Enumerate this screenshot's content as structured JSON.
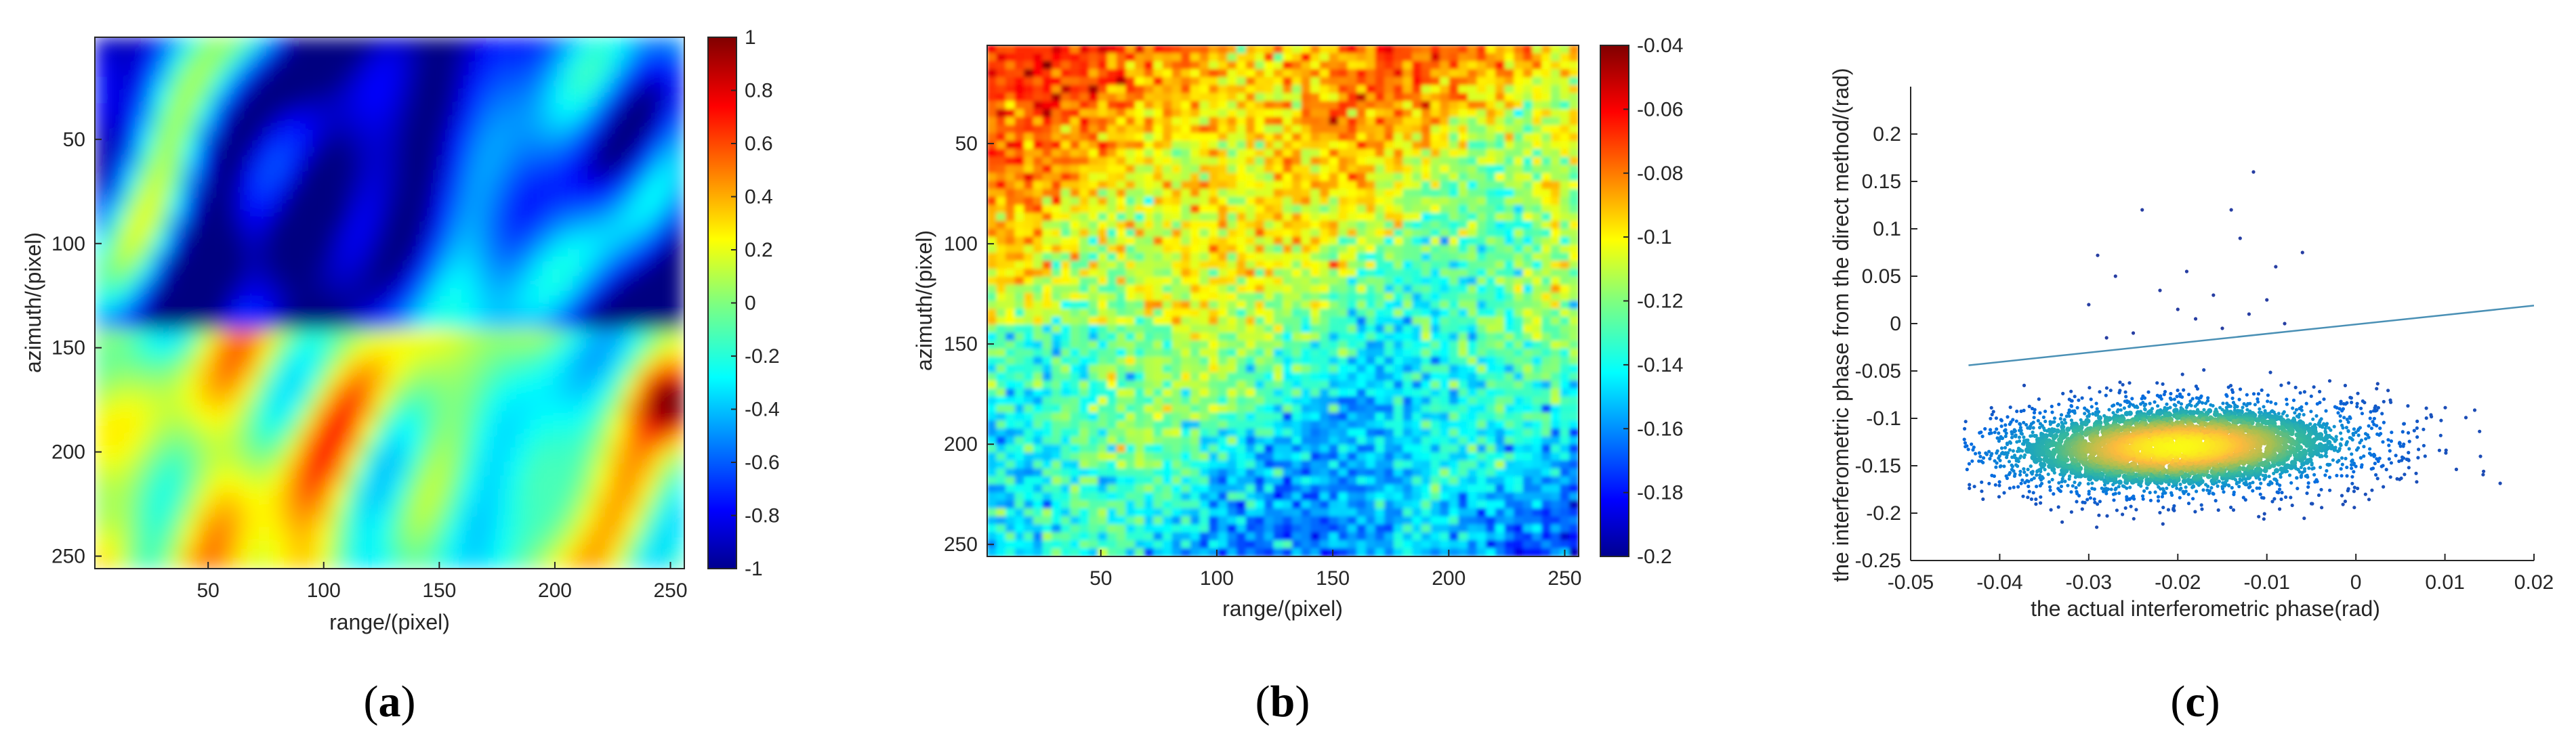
{
  "chart_data": [
    {
      "type": "heatmap",
      "caption": "a",
      "xlabel": "range/(pixel)",
      "ylabel": "azimuth/(pixel)",
      "xlim": [
        1,
        256
      ],
      "ylim": [
        1,
        256
      ],
      "xticks": [
        50,
        100,
        150,
        200,
        250
      ],
      "yticks": [
        50,
        100,
        150,
        200,
        250
      ],
      "colormap": "jet",
      "clim": [
        -1,
        1
      ],
      "colorbar_ticks": [
        1,
        0.8,
        0.6,
        0.4,
        0.2,
        0,
        -0.2,
        -0.4,
        -0.6,
        -0.8,
        -1
      ],
      "pattern": "upper half (azimuth 1-150) mostly -0.6 to -1 with patches near -0.2; lower half (azimuth 150-256) mostly 0 to 0.3 with hot spots up to 0.8-1 near range 250, azimuth 180"
    },
    {
      "type": "heatmap",
      "caption": "b",
      "xlabel": "range/(pixel)",
      "ylabel": "azimuth/(pixel)",
      "xlim": [
        1,
        256
      ],
      "ylim": [
        1,
        256
      ],
      "xticks": [
        50,
        100,
        150,
        200,
        250
      ],
      "yticks": [
        50,
        100,
        150,
        200,
        250
      ],
      "colormap": "jet",
      "clim": [
        -0.2,
        -0.04
      ],
      "colorbar_ticks": [
        -0.04,
        -0.06,
        -0.08,
        -0.1,
        -0.12,
        -0.14,
        -0.16,
        -0.18,
        -0.2
      ],
      "pattern": "upper-left band around -0.07 to -0.09; lower-right region around -0.13 to -0.16; fine-grained noise"
    },
    {
      "type": "scatter",
      "caption": "c",
      "xlabel": "the actual interferometric phase(rad)",
      "ylabel": "the interferometric phase from the direct method/(rad)",
      "xlim": [
        -0.05,
        0.02
      ],
      "ylim": [
        -0.25,
        0.25
      ],
      "xticks": [
        -0.05,
        -0.04,
        -0.03,
        -0.02,
        -0.01,
        0,
        0.01,
        0.02
      ],
      "xticklabels": [
        "-0.05",
        "-0.04",
        "-0.03",
        "-0.02",
        "-0.01",
        "0",
        "0.01",
        "0.02"
      ],
      "yticks": [
        -0.25,
        -0.2,
        -0.15,
        -0.1,
        -0.05,
        0,
        0.05,
        0.1,
        0.15,
        0.2
      ],
      "yticklabels": [
        "-0.25",
        "-0.2",
        "-0.15",
        "-0.1",
        "-0.05",
        "0",
        "0.05",
        "0.1",
        "0.15",
        "0.2"
      ],
      "cluster": {
        "center": [
          -0.02,
          -0.13
        ],
        "x_spread": 0.011,
        "y_spread": 0.025,
        "x_range": [
          -0.044,
          0.017
        ]
      },
      "outliers": [
        [
          -0.024,
          0.12
        ],
        [
          -0.029,
          0.072
        ],
        [
          -0.014,
          0.12
        ],
        [
          -0.0115,
          0.16
        ],
        [
          -0.013,
          0.09
        ],
        [
          -0.009,
          0.06
        ],
        [
          -0.027,
          0.05
        ],
        [
          -0.022,
          0.035
        ],
        [
          -0.016,
          0.03
        ],
        [
          -0.03,
          0.02
        ],
        [
          -0.018,
          0.005
        ],
        [
          -0.012,
          0.01
        ],
        [
          -0.008,
          0.0
        ],
        [
          -0.025,
          -0.01
        ],
        [
          -0.02,
          0.015
        ],
        [
          -0.015,
          -0.005
        ],
        [
          -0.028,
          -0.015
        ],
        [
          -0.006,
          0.075
        ],
        [
          -0.01,
          0.025
        ],
        [
          -0.019,
          0.055
        ]
      ],
      "fit_line": {
        "x": [
          -0.0435,
          0.02
        ],
        "y": [
          -0.044,
          0.019
        ],
        "color": "#4a90b5"
      },
      "colormap": "parula-density"
    }
  ]
}
